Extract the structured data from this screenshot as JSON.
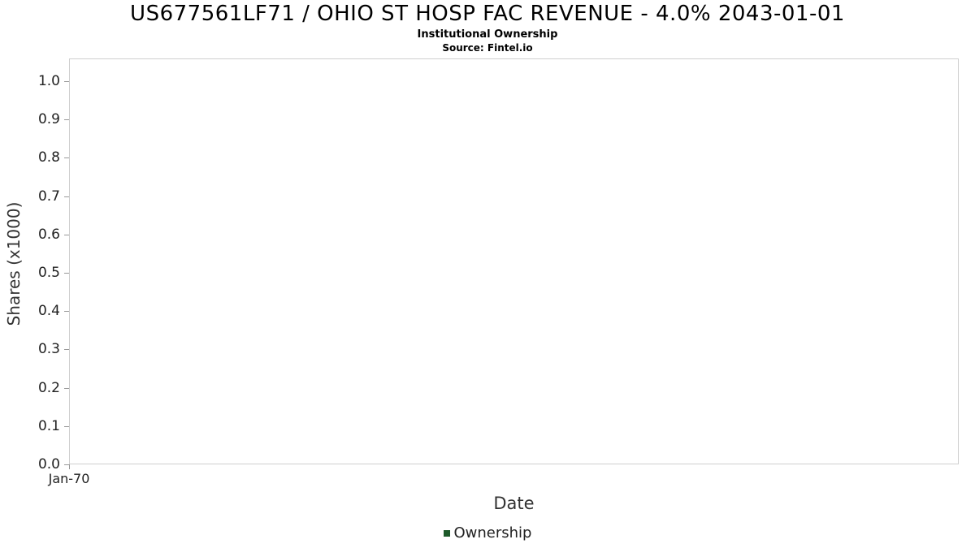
{
  "title": "US677561LF71 / OHIO ST HOSP FAC REVENUE - 4.0% 2043-01-01",
  "subtitle": "Institutional Ownership",
  "source": "Source: Fintel.io",
  "chart_data": {
    "type": "bar",
    "title": "US677561LF71 / OHIO ST HOSP FAC REVENUE - 4.0% 2043-01-01",
    "subtitle": "Institutional Ownership",
    "source": "Source: Fintel.io",
    "xlabel": "Date",
    "ylabel": "Shares (x1000)",
    "ylim": [
      0.0,
      1.0
    ],
    "yticks": [
      0.0,
      0.1,
      0.2,
      0.3,
      0.4,
      0.5,
      0.6,
      0.7,
      0.8,
      0.9,
      1.0
    ],
    "ytick_labels": [
      "0.0",
      "0.1",
      "0.2",
      "0.3",
      "0.4",
      "0.5",
      "0.6",
      "0.7",
      "0.8",
      "0.9",
      "1.0"
    ],
    "xticks": [
      "Jan-70"
    ],
    "grid": false,
    "legend_position": "bottom",
    "series": [
      {
        "name": "Ownership",
        "color": "#1d5a2a",
        "x": [],
        "values": []
      }
    ],
    "legend": [
      {
        "label": "Ownership",
        "color": "#1d5a2a"
      }
    ],
    "note": "empty plot - no data points rendered"
  }
}
